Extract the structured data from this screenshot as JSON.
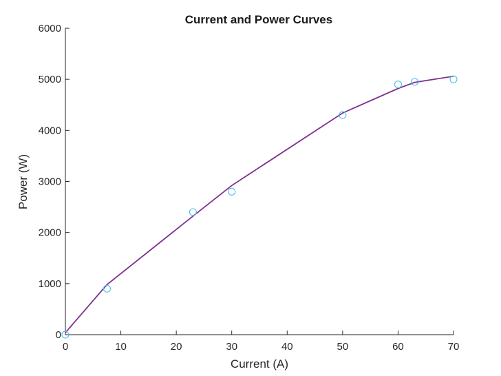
{
  "chart_data": {
    "type": "line",
    "title": "Current and Power Curves",
    "xlabel": "Current (A)",
    "ylabel": "Power (W)",
    "xlim": [
      0,
      70
    ],
    "ylim": [
      0,
      6000
    ],
    "xticks": [
      0,
      10,
      20,
      30,
      40,
      50,
      60,
      70
    ],
    "yticks": [
      0,
      1000,
      2000,
      3000,
      4000,
      5000,
      6000
    ],
    "grid": false,
    "legend": "none",
    "series": [
      {
        "kind": "scatter",
        "marker": "circle",
        "color": "#4DBEEE",
        "x": [
          0,
          7.5,
          23,
          30,
          50,
          60,
          63,
          70
        ],
        "y": [
          0,
          900,
          2400,
          2800,
          4300,
          4900,
          4950,
          5000
        ]
      },
      {
        "kind": "line",
        "color": "#7E2F8E",
        "x": [
          0,
          7.5,
          23,
          30,
          50,
          60,
          63,
          70
        ],
        "y": [
          40,
          980,
          2320,
          2920,
          4340,
          4820,
          4940,
          5060
        ]
      }
    ]
  }
}
